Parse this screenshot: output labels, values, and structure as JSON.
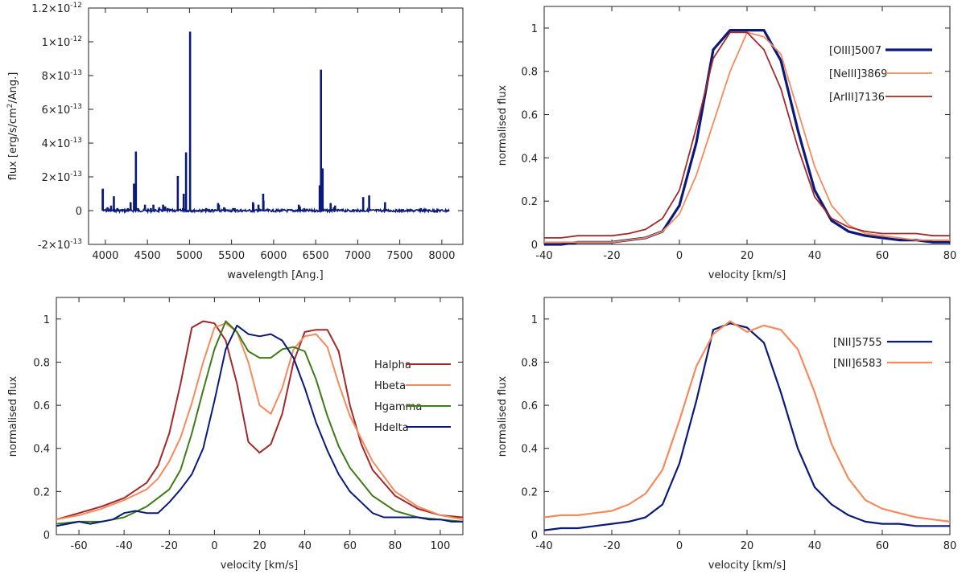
{
  "colors": {
    "navy": "#0b1a78",
    "salmon": "#f58a5c",
    "darkred": "#a3282a",
    "green": "#3f7a18"
  },
  "chart_data": [
    {
      "id": "spectrum",
      "type": "line",
      "xlabel": "wavelength [Ang.]",
      "ylabel": "flux [erg/s/cm2/Ang.]",
      "ylabel_parts": {
        "pre": "flux [erg/s/cm",
        "sup": "2",
        "post": "/Ang.]"
      },
      "xlim": [
        3800,
        8250
      ],
      "ylim": [
        -2e-13,
        1.2e-12
      ],
      "xticks": [
        4000,
        4500,
        5000,
        5500,
        6000,
        6500,
        7000,
        7500,
        8000
      ],
      "yticks": [
        {
          "value": -2e-13,
          "mant": "-2×10",
          "exp": "-13"
        },
        {
          "value": 0,
          "mant": "0",
          "exp": ""
        },
        {
          "value": 2e-13,
          "mant": "2×10",
          "exp": "-13"
        },
        {
          "value": 4e-13,
          "mant": "4×10",
          "exp": "-13"
        },
        {
          "value": 6e-13,
          "mant": "6×10",
          "exp": "-13"
        },
        {
          "value": 8e-13,
          "mant": "8×10",
          "exp": "-13"
        },
        {
          "value": 1e-12,
          "mant": "1×10",
          "exp": "-12"
        },
        {
          "value": 1.2e-12,
          "mant": "1.2×10",
          "exp": "-12"
        }
      ],
      "series": [
        {
          "name": "spectrum",
          "color": "#0b1a78",
          "range": [
            3970,
            8090
          ],
          "lines": [
            [
              3968,
              1.25e-13
            ],
            [
              3970,
              1.3e-13
            ],
            [
              4026,
              2e-14
            ],
            [
              4068,
              3e-14
            ],
            [
              4101,
              8.5e-14
            ],
            [
              4144,
              1.5e-14
            ],
            [
              4200,
              1e-14
            ],
            [
              4267,
              1.5e-14
            ],
            [
              4340,
              1.6e-13
            ],
            [
              4363,
              3.5e-13
            ],
            [
              4388,
              1.5e-14
            ],
            [
              4471,
              3.5e-14
            ],
            [
              4541,
              1.5e-14
            ],
            [
              4571,
              3.5e-14
            ],
            [
              4640,
              2e-14
            ],
            [
              4686,
              3.5e-14
            ],
            [
              4711,
              2.5e-14
            ],
            [
              4740,
              1.5e-14
            ],
            [
              4861,
              2.05e-13
            ],
            [
              4922,
              1.5e-14
            ],
            [
              4931,
              1e-13
            ],
            [
              4959,
              3.45e-13
            ],
            [
              5007,
              1.06e-12
            ],
            [
              5200,
              1.5e-14
            ],
            [
              5270,
              1e-14
            ],
            [
              5411,
              2e-14
            ],
            [
              5518,
              1.5e-14
            ],
            [
              5538,
              1.5e-14
            ],
            [
              5755,
              5e-14
            ],
            [
              5876,
              1e-13
            ],
            [
              6300,
              3.5e-14
            ],
            [
              6312,
              2.5e-14
            ],
            [
              6363,
              1.5e-14
            ],
            [
              6548,
              1.5e-13
            ],
            [
              6563,
              8.35e-13
            ],
            [
              6583,
              2.5e-13
            ],
            [
              6678,
              4.5e-14
            ],
            [
              6716,
              2e-14
            ],
            [
              6731,
              3e-14
            ],
            [
              7065,
              8e-14
            ],
            [
              7136,
              9e-14
            ],
            [
              7325,
              5e-14
            ],
            [
              7751,
              1.5e-14
            ],
            [
              5340,
              4.5e-14
            ],
            [
              5350,
              3.5e-14
            ],
            [
              5760,
              4e-14
            ],
            [
              5820,
              3.5e-14
            ],
            [
              5880,
              6e-14
            ],
            [
              4300,
              5e-14
            ]
          ]
        }
      ]
    },
    {
      "id": "oiii",
      "type": "line",
      "xlabel": "velocity [km/s]",
      "ylabel": "normalised flux",
      "xlim": [
        -40,
        80
      ],
      "ylim": [
        0,
        1.1
      ],
      "xticks": [
        -40,
        -20,
        0,
        20,
        40,
        60,
        80
      ],
      "yticks": [
        0,
        0.2,
        0.4,
        0.6,
        0.8,
        1
      ],
      "series": [
        {
          "name": "[OIII]5007",
          "color": "#0b1a78",
          "width": 3.2,
          "x": [
            -40,
            -35,
            -30,
            -25,
            -20,
            -15,
            -10,
            -5,
            0,
            5,
            10,
            15,
            20,
            25,
            30,
            35,
            40,
            45,
            50,
            55,
            60,
            65,
            70,
            75,
            80
          ],
          "y": [
            0.0,
            0.0,
            0.01,
            0.01,
            0.01,
            0.02,
            0.03,
            0.06,
            0.18,
            0.47,
            0.9,
            0.99,
            0.99,
            0.99,
            0.85,
            0.53,
            0.25,
            0.11,
            0.06,
            0.04,
            0.03,
            0.02,
            0.02,
            0.01,
            0.01
          ]
        },
        {
          "name": "[NeIII]3869",
          "color": "#f58a5c",
          "width": 1.8,
          "x": [
            -40,
            -35,
            -30,
            -25,
            -20,
            -15,
            -10,
            -5,
            0,
            5,
            10,
            15,
            20,
            25,
            30,
            35,
            40,
            45,
            50,
            55,
            60,
            65,
            70,
            75,
            80
          ],
          "y": [
            0.01,
            0.01,
            0.01,
            0.01,
            0.01,
            0.02,
            0.03,
            0.06,
            0.14,
            0.32,
            0.56,
            0.8,
            0.98,
            0.96,
            0.88,
            0.62,
            0.36,
            0.18,
            0.09,
            0.05,
            0.04,
            0.03,
            0.02,
            0.02,
            0.02
          ]
        },
        {
          "name": "[ArIII]7136",
          "color": "#a3282a",
          "width": 1.8,
          "x": [
            -40,
            -35,
            -30,
            -25,
            -20,
            -15,
            -10,
            -5,
            0,
            5,
            10,
            15,
            20,
            25,
            30,
            35,
            40,
            45,
            50,
            55,
            60,
            65,
            70,
            75,
            80
          ],
          "y": [
            0.03,
            0.03,
            0.04,
            0.04,
            0.04,
            0.05,
            0.07,
            0.12,
            0.25,
            0.54,
            0.86,
            0.98,
            0.98,
            0.9,
            0.72,
            0.45,
            0.22,
            0.12,
            0.08,
            0.06,
            0.05,
            0.05,
            0.05,
            0.04,
            0.04
          ]
        }
      ]
    },
    {
      "id": "hydrogen",
      "type": "line",
      "xlabel": "velocity [km/s]",
      "ylabel": "normalised flux",
      "xlim": [
        -70,
        110
      ],
      "ylim": [
        0,
        1.1
      ],
      "xticks": [
        -60,
        -40,
        -20,
        0,
        20,
        40,
        60,
        80,
        100
      ],
      "yticks": [
        0,
        0.2,
        0.4,
        0.6,
        0.8,
        1
      ],
      "series": [
        {
          "name": "Halpha",
          "color": "#a3282a",
          "width": 2,
          "x": [
            -70,
            -60,
            -50,
            -40,
            -30,
            -25,
            -20,
            -15,
            -10,
            -5,
            0,
            5,
            10,
            15,
            20,
            25,
            30,
            35,
            40,
            45,
            50,
            55,
            60,
            65,
            70,
            80,
            90,
            100,
            110
          ],
          "y": [
            0.07,
            0.1,
            0.13,
            0.17,
            0.24,
            0.32,
            0.47,
            0.7,
            0.96,
            0.99,
            0.98,
            0.9,
            0.7,
            0.43,
            0.38,
            0.42,
            0.56,
            0.8,
            0.94,
            0.95,
            0.95,
            0.85,
            0.6,
            0.42,
            0.3,
            0.18,
            0.12,
            0.09,
            0.08
          ]
        },
        {
          "name": "Hbeta",
          "color": "#f58a5c",
          "width": 2,
          "x": [
            -70,
            -60,
            -50,
            -40,
            -30,
            -25,
            -20,
            -15,
            -10,
            -5,
            0,
            5,
            10,
            15,
            20,
            25,
            30,
            35,
            40,
            45,
            50,
            55,
            60,
            70,
            80,
            90,
            100,
            110
          ],
          "y": [
            0.07,
            0.09,
            0.12,
            0.16,
            0.21,
            0.26,
            0.34,
            0.45,
            0.61,
            0.8,
            0.96,
            0.98,
            0.94,
            0.8,
            0.6,
            0.56,
            0.68,
            0.86,
            0.92,
            0.93,
            0.87,
            0.7,
            0.55,
            0.34,
            0.2,
            0.13,
            0.09,
            0.07
          ]
        },
        {
          "name": "Hgamma",
          "color": "#3f7a18",
          "width": 2,
          "x": [
            -70,
            -60,
            -50,
            -40,
            -30,
            -25,
            -20,
            -15,
            -10,
            -5,
            0,
            5,
            10,
            15,
            20,
            25,
            30,
            35,
            40,
            45,
            50,
            55,
            60,
            70,
            80,
            90,
            100,
            110
          ],
          "y": [
            0.05,
            0.06,
            0.06,
            0.08,
            0.13,
            0.17,
            0.21,
            0.3,
            0.47,
            0.67,
            0.86,
            0.99,
            0.94,
            0.85,
            0.82,
            0.82,
            0.86,
            0.87,
            0.85,
            0.72,
            0.55,
            0.41,
            0.31,
            0.18,
            0.11,
            0.08,
            0.07,
            0.06
          ]
        },
        {
          "name": "Hdelta",
          "color": "#0b1a78",
          "width": 2,
          "x": [
            -70,
            -65,
            -60,
            -55,
            -50,
            -45,
            -40,
            -35,
            -30,
            -25,
            -20,
            -15,
            -10,
            -5,
            0,
            5,
            10,
            15,
            20,
            25,
            30,
            35,
            40,
            45,
            50,
            55,
            60,
            65,
            70,
            75,
            80,
            85,
            90,
            95,
            100,
            105,
            110
          ],
          "y": [
            0.04,
            0.05,
            0.06,
            0.05,
            0.06,
            0.07,
            0.1,
            0.11,
            0.1,
            0.1,
            0.15,
            0.21,
            0.28,
            0.4,
            0.62,
            0.86,
            0.97,
            0.93,
            0.92,
            0.93,
            0.9,
            0.82,
            0.68,
            0.52,
            0.39,
            0.28,
            0.2,
            0.15,
            0.1,
            0.08,
            0.08,
            0.08,
            0.08,
            0.07,
            0.07,
            0.06,
            0.06
          ]
        }
      ]
    },
    {
      "id": "nii",
      "type": "line",
      "xlabel": "velocity [km/s]",
      "ylabel": "normalised flux",
      "xlim": [
        -40,
        80
      ],
      "ylim": [
        0,
        1.1
      ],
      "xticks": [
        -40,
        -20,
        0,
        20,
        40,
        60,
        80
      ],
      "yticks": [
        0,
        0.2,
        0.4,
        0.6,
        0.8,
        1
      ],
      "series": [
        {
          "name": "[NII]5755",
          "color": "#0b1a78",
          "width": 2.2,
          "x": [
            -40,
            -35,
            -30,
            -25,
            -20,
            -15,
            -10,
            -5,
            0,
            5,
            10,
            15,
            20,
            25,
            30,
            35,
            40,
            45,
            50,
            55,
            60,
            65,
            70,
            75,
            80
          ],
          "y": [
            0.02,
            0.03,
            0.03,
            0.04,
            0.05,
            0.06,
            0.08,
            0.14,
            0.33,
            0.62,
            0.95,
            0.98,
            0.96,
            0.89,
            0.66,
            0.4,
            0.22,
            0.14,
            0.09,
            0.06,
            0.05,
            0.05,
            0.04,
            0.04,
            0.04
          ]
        },
        {
          "name": "[NII]6583",
          "color": "#f58a5c",
          "width": 2.2,
          "x": [
            -40,
            -35,
            -30,
            -25,
            -20,
            -15,
            -10,
            -5,
            0,
            5,
            10,
            15,
            20,
            25,
            30,
            35,
            40,
            45,
            50,
            55,
            60,
            65,
            70,
            75,
            80
          ],
          "y": [
            0.08,
            0.09,
            0.09,
            0.1,
            0.11,
            0.14,
            0.19,
            0.3,
            0.53,
            0.78,
            0.93,
            0.99,
            0.94,
            0.97,
            0.95,
            0.86,
            0.66,
            0.42,
            0.26,
            0.16,
            0.12,
            0.1,
            0.08,
            0.07,
            0.06
          ]
        }
      ]
    }
  ]
}
